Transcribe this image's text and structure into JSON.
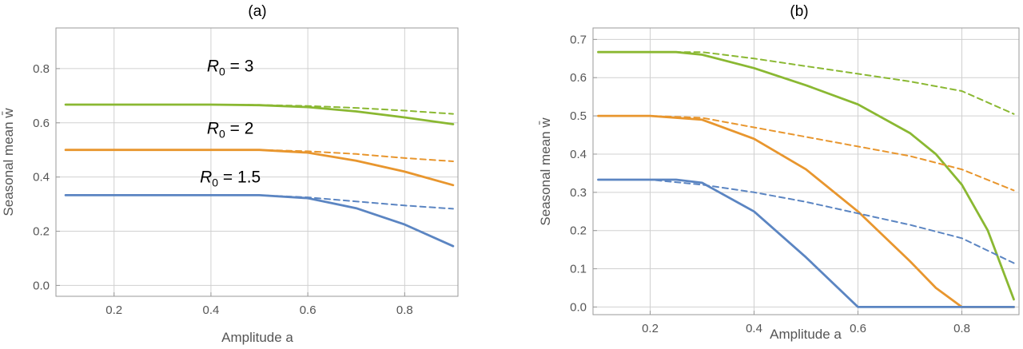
{
  "chart_data": [
    {
      "type": "line",
      "title": "(a)",
      "xlabel": "Amplitude a",
      "ylabel": "Seasonal mean w̄",
      "xlim": [
        0.08,
        0.91
      ],
      "ylim": [
        -0.04,
        0.95
      ],
      "xticks": [
        "0.2",
        "0.4",
        "0.6",
        "0.8"
      ],
      "yticks": [
        "0.0",
        "0.2",
        "0.4",
        "0.6",
        "0.8"
      ],
      "grid": true,
      "annotations": [
        {
          "base": "R",
          "sub": "0",
          "rest": " = 3",
          "x": 0.44,
          "y": 0.79
        },
        {
          "base": "R",
          "sub": "0",
          "rest": " = 2",
          "x": 0.44,
          "y": 0.56
        },
        {
          "base": "R",
          "sub": "0",
          "rest": " = 1.5",
          "x": 0.44,
          "y": 0.38
        }
      ],
      "series": [
        {
          "color": "#8ab832",
          "style": "solid",
          "x": [
            0.1,
            0.2,
            0.3,
            0.4,
            0.5,
            0.6,
            0.7,
            0.8,
            0.9
          ],
          "y": [
            0.667,
            0.667,
            0.667,
            0.667,
            0.665,
            0.658,
            0.642,
            0.62,
            0.595
          ]
        },
        {
          "color": "#8ab832",
          "style": "dashed",
          "x": [
            0.1,
            0.2,
            0.3,
            0.4,
            0.5,
            0.6,
            0.7,
            0.8,
            0.9
          ],
          "y": [
            0.667,
            0.667,
            0.667,
            0.667,
            0.666,
            0.662,
            0.655,
            0.645,
            0.633
          ]
        },
        {
          "color": "#e8962e",
          "style": "solid",
          "x": [
            0.1,
            0.2,
            0.3,
            0.4,
            0.5,
            0.6,
            0.7,
            0.8,
            0.9
          ],
          "y": [
            0.5,
            0.5,
            0.5,
            0.5,
            0.5,
            0.49,
            0.46,
            0.42,
            0.37
          ]
        },
        {
          "color": "#e8962e",
          "style": "dashed",
          "x": [
            0.1,
            0.2,
            0.3,
            0.4,
            0.5,
            0.6,
            0.7,
            0.8,
            0.9
          ],
          "y": [
            0.5,
            0.5,
            0.5,
            0.5,
            0.5,
            0.495,
            0.485,
            0.47,
            0.458
          ]
        },
        {
          "color": "#5b85c2",
          "style": "solid",
          "x": [
            0.1,
            0.2,
            0.3,
            0.4,
            0.5,
            0.6,
            0.7,
            0.8,
            0.9
          ],
          "y": [
            0.333,
            0.333,
            0.333,
            0.333,
            0.333,
            0.322,
            0.285,
            0.225,
            0.145
          ]
        },
        {
          "color": "#5b85c2",
          "style": "dashed",
          "x": [
            0.1,
            0.2,
            0.3,
            0.4,
            0.5,
            0.6,
            0.7,
            0.8,
            0.9
          ],
          "y": [
            0.333,
            0.333,
            0.333,
            0.333,
            0.333,
            0.325,
            0.31,
            0.295,
            0.283
          ]
        }
      ]
    },
    {
      "type": "line",
      "title": "(b)",
      "xlabel": "Amplitude a",
      "ylabel": "Seasonal mean w̄",
      "xlim": [
        0.09,
        0.91
      ],
      "ylim": [
        -0.02,
        0.73
      ],
      "xticks": [
        "0.2",
        "0.4",
        "0.6",
        "0.8"
      ],
      "yticks": [
        "0.0",
        "0.1",
        "0.2",
        "0.3",
        "0.4",
        "0.5",
        "0.6",
        "0.7"
      ],
      "grid": true,
      "series": [
        {
          "color": "#8ab832",
          "style": "solid",
          "x": [
            0.1,
            0.2,
            0.25,
            0.3,
            0.4,
            0.5,
            0.6,
            0.7,
            0.75,
            0.8,
            0.85,
            0.9
          ],
          "y": [
            0.667,
            0.667,
            0.667,
            0.66,
            0.625,
            0.58,
            0.53,
            0.455,
            0.4,
            0.32,
            0.2,
            0.02
          ]
        },
        {
          "color": "#8ab832",
          "style": "dashed",
          "x": [
            0.1,
            0.2,
            0.3,
            0.4,
            0.5,
            0.6,
            0.7,
            0.8,
            0.9
          ],
          "y": [
            0.667,
            0.667,
            0.667,
            0.65,
            0.63,
            0.61,
            0.59,
            0.565,
            0.505
          ]
        },
        {
          "color": "#e8962e",
          "style": "solid",
          "x": [
            0.1,
            0.2,
            0.3,
            0.4,
            0.5,
            0.6,
            0.7,
            0.75,
            0.8,
            0.9
          ],
          "y": [
            0.5,
            0.5,
            0.49,
            0.44,
            0.36,
            0.25,
            0.12,
            0.05,
            0.0,
            0.0
          ]
        },
        {
          "color": "#e8962e",
          "style": "dashed",
          "x": [
            0.1,
            0.2,
            0.3,
            0.4,
            0.5,
            0.6,
            0.7,
            0.8,
            0.9
          ],
          "y": [
            0.5,
            0.5,
            0.495,
            0.47,
            0.445,
            0.42,
            0.395,
            0.36,
            0.305
          ]
        },
        {
          "color": "#5b85c2",
          "style": "solid",
          "x": [
            0.1,
            0.2,
            0.25,
            0.3,
            0.4,
            0.5,
            0.6,
            0.7,
            0.8,
            0.9
          ],
          "y": [
            0.333,
            0.333,
            0.333,
            0.325,
            0.25,
            0.13,
            0.0,
            0.0,
            0.0,
            0.0
          ]
        },
        {
          "color": "#5b85c2",
          "style": "dashed",
          "x": [
            0.1,
            0.2,
            0.3,
            0.4,
            0.5,
            0.6,
            0.7,
            0.8,
            0.9
          ],
          "y": [
            0.333,
            0.333,
            0.32,
            0.3,
            0.275,
            0.245,
            0.215,
            0.18,
            0.115
          ]
        }
      ]
    }
  ]
}
